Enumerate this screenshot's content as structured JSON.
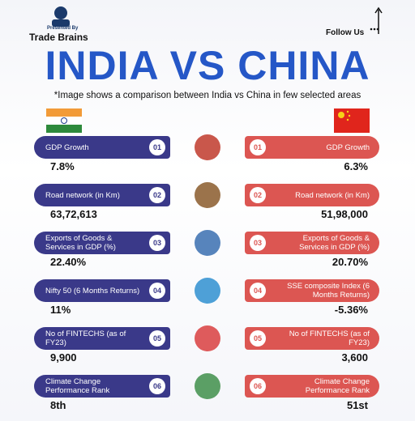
{
  "header": {
    "presented_by": "Presented By",
    "brand": "Trade Brains",
    "follow": "Follow Us",
    "title": "INDIA VS CHINA",
    "subtitle": "*Image shows a comparison between India vs China in few selected areas"
  },
  "rows": [
    {
      "number": "01",
      "india_label": "GDP Growth",
      "india_value": "7.8%",
      "china_label": "GDP Growth",
      "china_value": "6.3%"
    },
    {
      "number": "02",
      "india_label": "Road network (in Km)",
      "india_value": "63,72,613",
      "china_label": "Road network (in Km)",
      "china_value": "51,98,000"
    },
    {
      "number": "03",
      "india_label": "Exports of Goods & Services in GDP (%)",
      "india_value": "22.40%",
      "china_label": "Exports of Goods & Services in GDP (%)",
      "china_value": "20.70%"
    },
    {
      "number": "04",
      "india_label": "Nifty 50 (6 Months Returns)",
      "india_value": "11%",
      "china_label": "SSE composite Index (6 Months Returns)",
      "china_value": "-5.36%"
    },
    {
      "number": "05",
      "india_label": "No of FINTECHS (as of FY23)",
      "india_value": "9,900",
      "china_label": "No of FINTECHS (as of FY23)",
      "china_value": "3,600"
    },
    {
      "number": "06",
      "india_label": "Climate Change Performance Rank",
      "india_value": "8th",
      "china_label": "Climate Change Performance Rank",
      "china_value": "51st"
    }
  ]
}
